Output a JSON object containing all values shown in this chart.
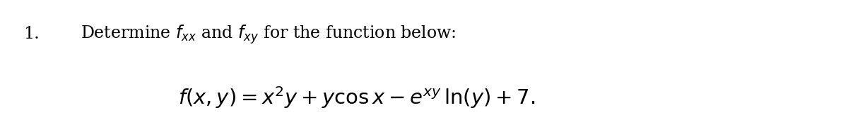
{
  "background_color": "#ffffff",
  "number": "1.",
  "line1": "Determine $f_{xx}$ and $f_{xy}$ for the function below:",
  "line2": "$f(x, y) = x^2y + y\\cos x - e^{xy}\\,\\ln(y) + 7.$",
  "text_color": "#000000",
  "number_fontsize": 17,
  "line1_fontsize": 17,
  "line2_fontsize": 21,
  "fig_width": 12.0,
  "fig_height": 1.74,
  "dpi": 100
}
